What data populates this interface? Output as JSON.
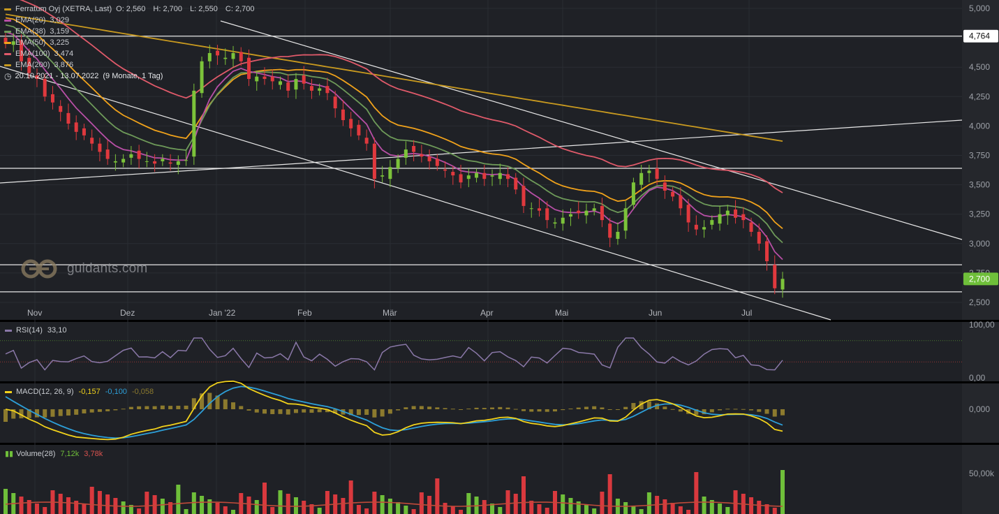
{
  "header": {
    "instrument": "Ferratum Oyj (XETRA, Last)",
    "ohlc": [
      "O: 2,560",
      "H: 2,700",
      "L: 2,550",
      "C: 2,700"
    ],
    "range_label": "20.10.2021 - 13.07.2022",
    "range_duration": "(9 Monate, 1 Tag)"
  },
  "indicators": [
    {
      "label": "EMA(20)",
      "value": "3,029",
      "color": "#b84fa6"
    },
    {
      "label": "EMA(38)",
      "value": "3,159",
      "color": "#6e9a59"
    },
    {
      "label": "EMA(50)",
      "value": "3,225",
      "color": "#f0a21b"
    },
    {
      "label": "EMA(100)",
      "value": "3,474",
      "color": "#e05a6a"
    },
    {
      "label": "EMA(200)",
      "value": "3,876",
      "color": "#c99a1f"
    }
  ],
  "watermark": "guidants.com",
  "price_axis": {
    "ticks": [
      "5,000",
      "4,750",
      "4,500",
      "4,250",
      "4,000",
      "3,750",
      "3,500",
      "3,250",
      "3,000",
      "2,750",
      "2,500"
    ],
    "tick_values": [
      5.0,
      4.75,
      4.5,
      4.25,
      4.0,
      3.75,
      3.5,
      3.25,
      3.0,
      2.75,
      2.5
    ],
    "marker_upper": "4,764",
    "marker_last": "2,700"
  },
  "time_axis": {
    "labels": [
      "Nov",
      "Dez",
      "Jan '22",
      "Feb",
      "Mär",
      "Apr",
      "Mai",
      "Jun",
      "Jul"
    ]
  },
  "rsi": {
    "label": "RSI(14)",
    "value": "33,10",
    "ticks": [
      "100,00",
      "0,00"
    ],
    "color": "#8a78a8"
  },
  "macd": {
    "label": "MACD(12, 26, 9)",
    "v1": "-0,157",
    "v2": "-0,100",
    "v3": "-0,058",
    "tick": "0,000",
    "color_macd": "#f2d21b",
    "color_signal": "#2d9fd8",
    "color_hist": "#8c7a2e"
  },
  "volume": {
    "label": "Volume(28)",
    "v1": "7,12k",
    "v2": "3,78k",
    "tick": "50,00k"
  },
  "chart_data": {
    "type": "candlestick",
    "title": "Ferratum Oyj (XETRA, Last)",
    "period": "20.10.2021 - 13.07.2022",
    "ylim": [
      2.45,
      5.05
    ],
    "months": [
      "Nov",
      "Dez",
      "Jan '22",
      "Feb",
      "Mär",
      "Apr",
      "Mai",
      "Jun",
      "Jul"
    ],
    "horizontal_lines": [
      4.764,
      3.64,
      2.82,
      2.59
    ],
    "last_close": 2.7,
    "ema_last": {
      "EMA(20)": 3.029,
      "EMA(38)": 3.159,
      "EMA(50)": 3.225,
      "EMA(100)": 3.474,
      "EMA(200)": 3.876
    },
    "close_series": [
      4.7,
      4.72,
      4.55,
      4.45,
      4.4,
      4.25,
      4.2,
      4.12,
      4.02,
      3.95,
      3.92,
      3.85,
      3.78,
      3.72,
      3.7,
      3.72,
      3.76,
      3.72,
      3.7,
      3.68,
      3.72,
      3.68,
      3.7,
      3.71,
      4.3,
      4.55,
      4.62,
      4.6,
      4.58,
      4.62,
      4.55,
      4.4,
      4.42,
      4.4,
      4.38,
      4.38,
      4.3,
      4.4,
      4.36,
      4.3,
      4.32,
      4.28,
      4.15,
      4.05,
      3.98,
      3.92,
      3.85,
      3.55,
      3.58,
      3.65,
      3.72,
      3.8,
      3.78,
      3.74,
      3.7,
      3.66,
      3.62,
      3.58,
      3.52,
      3.58,
      3.6,
      3.55,
      3.58,
      3.6,
      3.55,
      3.46,
      3.32,
      3.3,
      3.28,
      3.2,
      3.18,
      3.22,
      3.25,
      3.26,
      3.28,
      3.3,
      3.2,
      3.05,
      3.1,
      3.3,
      3.52,
      3.6,
      3.62,
      3.55,
      3.45,
      3.4,
      3.3,
      3.18,
      3.12,
      3.14,
      3.2,
      3.25,
      3.28,
      3.22,
      3.2,
      3.1,
      3.0,
      2.85,
      2.62,
      2.7
    ],
    "rsi_last": 33.1,
    "macd_last": {
      "macd": -0.157,
      "signal": -0.1,
      "histogram": -0.058
    },
    "volume_last": {
      "volume": "7,12k",
      "avg28": "3,78k"
    }
  }
}
